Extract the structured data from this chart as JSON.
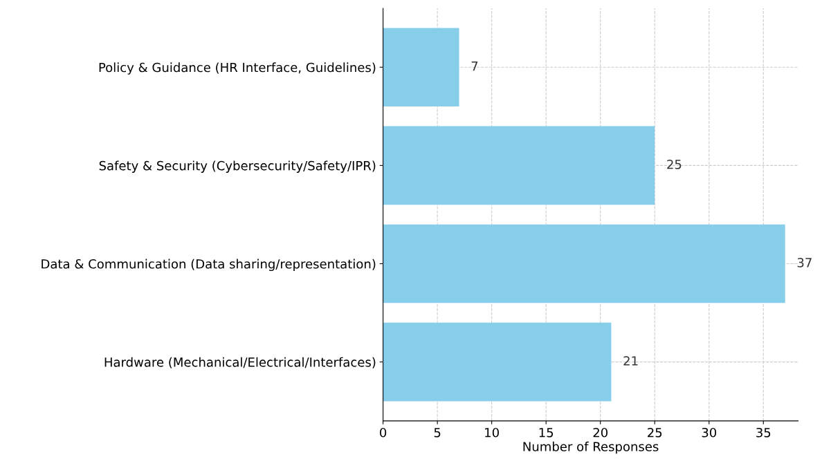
{
  "chart_data": {
    "type": "bar",
    "orientation": "horizontal",
    "xlabel": "Number of Responses",
    "categories": [
      "Policy & Guidance (HR Interface, Guidelines)",
      "Safety & Security (Cybersecurity/Safety/IPR)",
      "Data & Communication (Data sharing/representation)",
      "Hardware (Mechanical/Electrical/Interfaces)"
    ],
    "values": [
      7,
      25,
      37,
      21
    ],
    "color": "#87ceeb",
    "xlim": [
      0,
      38.2
    ],
    "xticks": [
      0,
      5,
      10,
      15,
      20,
      25,
      30,
      35
    ],
    "grid": true,
    "data_labels": true,
    "line_style": "dashed"
  }
}
